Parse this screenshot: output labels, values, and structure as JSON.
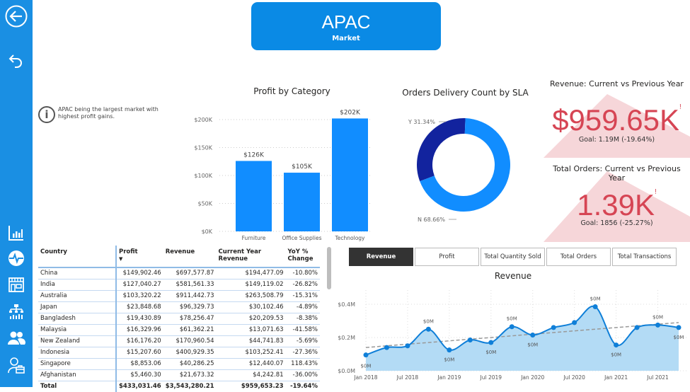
{
  "sidebar": {
    "top_icons": [
      "back-arrow-icon",
      "undo-icon"
    ],
    "bottom_icons": [
      "bar-chart-icon",
      "pulse-icon",
      "store-icon",
      "hierarchy-chart-icon",
      "people-icon",
      "customer-service-icon"
    ]
  },
  "header": {
    "title": "APAC",
    "subtitle": "Market"
  },
  "info": {
    "icon": "i",
    "text": "APAC being the largest market with highest profit gains."
  },
  "kpis": [
    {
      "title": "Revenue: Current vs Previous Year",
      "value": "$959.65K",
      "indicator": "!",
      "goal": "Goal: 1.19M (-19.64%)",
      "color": "#d64554"
    },
    {
      "title": "Total Orders: Current vs Previous Year",
      "value": "1.39K",
      "indicator": "!",
      "goal": "Goal: 1856 (-25.27%)",
      "color": "#d64554"
    }
  ],
  "table": {
    "columns": [
      "Country",
      "Profit",
      "Revenue",
      "Current Year Revenue",
      "YoY % Change"
    ],
    "sort_indicator": "▼",
    "rows": [
      [
        "China",
        "$149,902.46",
        "$697,577.87",
        "$194,477.09",
        "-10.80%"
      ],
      [
        "India",
        "$127,040.27",
        "$581,561.33",
        "$149,119.02",
        "-26.82%"
      ],
      [
        "Australia",
        "$103,320.22",
        "$911,442.73",
        "$263,508.79",
        "-15.31%"
      ],
      [
        "Japan",
        "$23,848.68",
        "$96,329.73",
        "$30,102.46",
        "-4.89%"
      ],
      [
        "Bangladesh",
        "$19,430.89",
        "$78,256.47",
        "$20,209.53",
        "-8.38%"
      ],
      [
        "Malaysia",
        "$16,329.96",
        "$61,362.21",
        "$13,071.63",
        "-41.58%"
      ],
      [
        "New Zealand",
        "$16,176.20",
        "$170,960.54",
        "$44,741.83",
        "-5.69%"
      ],
      [
        "Indonesia",
        "$15,207.60",
        "$400,929.35",
        "$103,252.41",
        "-27.36%"
      ],
      [
        "Singapore",
        "$8,853.06",
        "$40,286.25",
        "$12,440.07",
        "118.43%"
      ],
      [
        "Afghanistan",
        "$5,460.30",
        "$21,673.32",
        "$4,242.81",
        "-36.00%"
      ]
    ],
    "total": [
      "Total",
      "$433,031.46",
      "$3,543,280.21",
      "$959,653.23",
      "-19.64%"
    ]
  },
  "tabs": [
    {
      "label": "Revenue",
      "active": true
    },
    {
      "label": "Profit",
      "active": false
    },
    {
      "label": "Total Quantity Sold",
      "active": false
    },
    {
      "label": "Total Orders",
      "active": false
    },
    {
      "label": "Total Transactions",
      "active": false
    }
  ],
  "chart_data": [
    {
      "type": "bar",
      "title": "Profit by Category",
      "categories": [
        "Furniture",
        "Office Supplies",
        "Technology"
      ],
      "values": [
        126,
        105,
        202
      ],
      "data_labels": [
        "$126K",
        "$105K",
        "$202K"
      ],
      "yticks": [
        "$0K",
        "$50K",
        "$100K",
        "$150K",
        "$200K"
      ],
      "ylim": [
        0,
        200
      ],
      "color": "#118dff",
      "grid": true
    },
    {
      "type": "pie",
      "title": "Orders Delivery Count by SLA",
      "donut": true,
      "slices": [
        {
          "label": "Y",
          "value": 31.34,
          "text": "Y 31.34%",
          "color": "#12239e"
        },
        {
          "label": "N",
          "value": 68.66,
          "text": "N 68.66%",
          "color": "#118dff"
        }
      ]
    },
    {
      "type": "area",
      "title": "Revenue",
      "x": [
        "Jan 2018",
        "Apr 2018",
        "Jul 2018",
        "Oct 2018",
        "Jan 2019",
        "Apr 2019",
        "Jul 2019",
        "Oct 2019",
        "Jan 2020",
        "Apr 2020",
        "Jul 2020",
        "Oct 2020",
        "Jan 2021",
        "Apr 2021",
        "Jul 2021",
        "Oct 2021"
      ],
      "values": [
        0.095,
        0.14,
        0.15,
        0.25,
        0.125,
        0.185,
        0.17,
        0.265,
        0.215,
        0.26,
        0.29,
        0.385,
        0.155,
        0.26,
        0.275,
        0.26
      ],
      "point_labels": {
        "0": "$0M",
        "3": "$0M",
        "4": "$0M",
        "6": "$0M",
        "7": "$0M",
        "8": "$0M",
        "11": "$0M",
        "12": "$0M",
        "14": "$0M",
        "15": "$0M"
      },
      "trend": [
        0.14,
        0.29
      ],
      "xticks": [
        "Jan 2018",
        "Jul 2018",
        "Jan 2019",
        "Jul 2019",
        "Jan 2020",
        "Jul 2020",
        "Jan 2021",
        "Jul 2021"
      ],
      "yticks": [
        "$0.0M",
        "$0.2M",
        "$0.4M"
      ],
      "ylim": [
        0,
        0.4
      ],
      "color": "#118dff",
      "fill": "#b3dbf5",
      "grid": true
    }
  ]
}
